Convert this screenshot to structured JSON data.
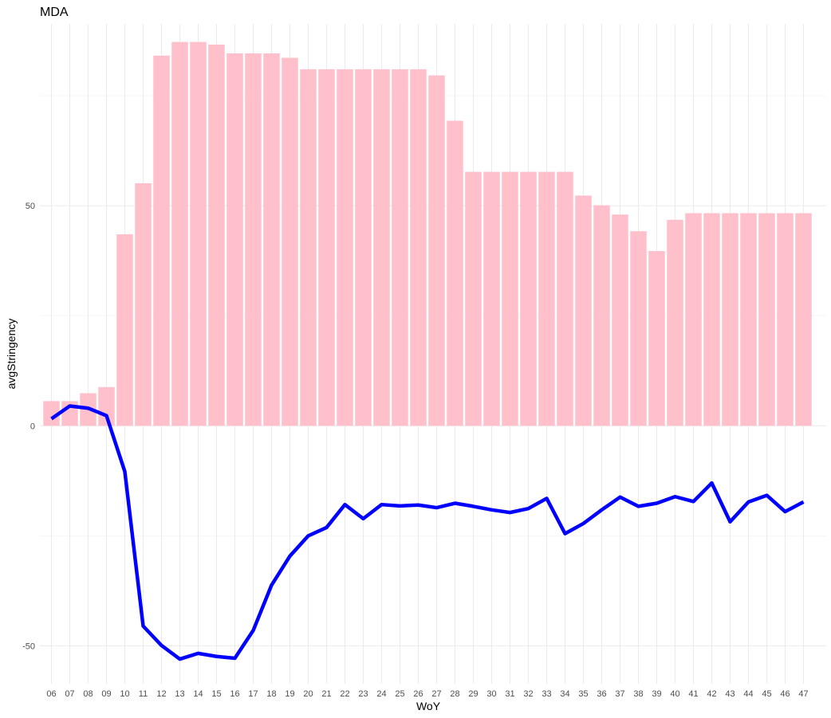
{
  "chart_data": {
    "type": "bar",
    "title": "MDA",
    "xlabel": "WoY",
    "ylabel": "avgStringency",
    "categories": [
      "06",
      "07",
      "08",
      "09",
      "10",
      "11",
      "12",
      "13",
      "14",
      "15",
      "16",
      "17",
      "18",
      "19",
      "20",
      "21",
      "22",
      "23",
      "24",
      "25",
      "26",
      "27",
      "28",
      "29",
      "30",
      "31",
      "32",
      "33",
      "34",
      "35",
      "36",
      "37",
      "38",
      "39",
      "40",
      "41",
      "42",
      "43",
      "44",
      "45",
      "46",
      "47"
    ],
    "series": [
      {
        "type": "bar",
        "color": "#FFC0CB",
        "values": [
          5.6,
          5.6,
          7.4,
          8.8,
          43.5,
          55.1,
          84.1,
          87.2,
          87.2,
          86.6,
          84.6,
          84.6,
          84.6,
          83.6,
          81.0,
          81.0,
          81.0,
          81.0,
          81.0,
          81.0,
          81.0,
          79.6,
          69.3,
          57.7,
          57.7,
          57.7,
          57.7,
          57.7,
          57.7,
          52.3,
          50.1,
          48.0,
          44.2,
          39.7,
          46.8,
          48.3,
          48.3,
          48.3,
          48.3,
          48.3,
          48.3,
          48.3
        ]
      },
      {
        "type": "line",
        "color": "#0000FF",
        "values": [
          1.6,
          4.5,
          4.0,
          2.3,
          -10.4,
          -45.5,
          -49.9,
          -53.0,
          -51.7,
          -52.4,
          -52.8,
          -46.5,
          -36.2,
          -29.6,
          -25.0,
          -23.1,
          -17.9,
          -21.1,
          -17.9,
          -18.2,
          -18.0,
          -18.6,
          -17.6,
          -18.3,
          -19.1,
          -19.7,
          -18.8,
          -16.5,
          -24.5,
          -22.2,
          -19.1,
          -16.2,
          -18.3,
          -17.6,
          -16.1,
          -17.2,
          -13.0,
          -21.8,
          -17.3,
          -15.8,
          -19.5,
          -17.3
        ]
      }
    ],
    "ylim": [
      -58.6,
      91.3
    ],
    "yticks": [
      -50,
      0,
      50
    ],
    "grid": true,
    "legend": "none"
  }
}
